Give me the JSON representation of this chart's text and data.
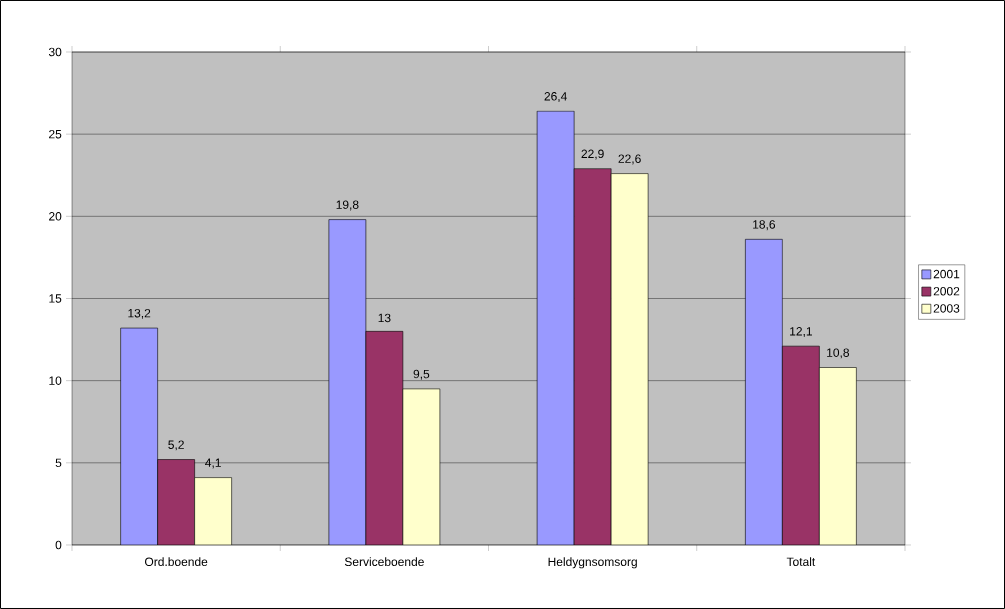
{
  "chart_data": {
    "type": "bar",
    "categories": [
      "Ord.boende",
      "Serviceboende",
      "Heldygnsomsorg",
      "Totalt"
    ],
    "series": [
      {
        "name": "2001",
        "color": "#9999ff",
        "values": [
          13.2,
          19.8,
          26.4,
          18.6
        ],
        "value_labels": [
          "13,2",
          "19,8",
          "26,4",
          "18,6"
        ]
      },
      {
        "name": "2002",
        "color": "#993366",
        "values": [
          5.2,
          13,
          22.9,
          12.1
        ],
        "value_labels": [
          "5,2",
          "13",
          "22,9",
          "12,1"
        ]
      },
      {
        "name": "2003",
        "color": "#ffffcc",
        "values": [
          4.1,
          9.5,
          22.6,
          10.8
        ],
        "value_labels": [
          "4,1",
          "9,5",
          "22,6",
          "10,8"
        ]
      }
    ],
    "ylim": [
      0,
      30
    ],
    "yticks": [
      0,
      5,
      10,
      15,
      20,
      25,
      30
    ],
    "grid": "y",
    "legend": "right"
  }
}
